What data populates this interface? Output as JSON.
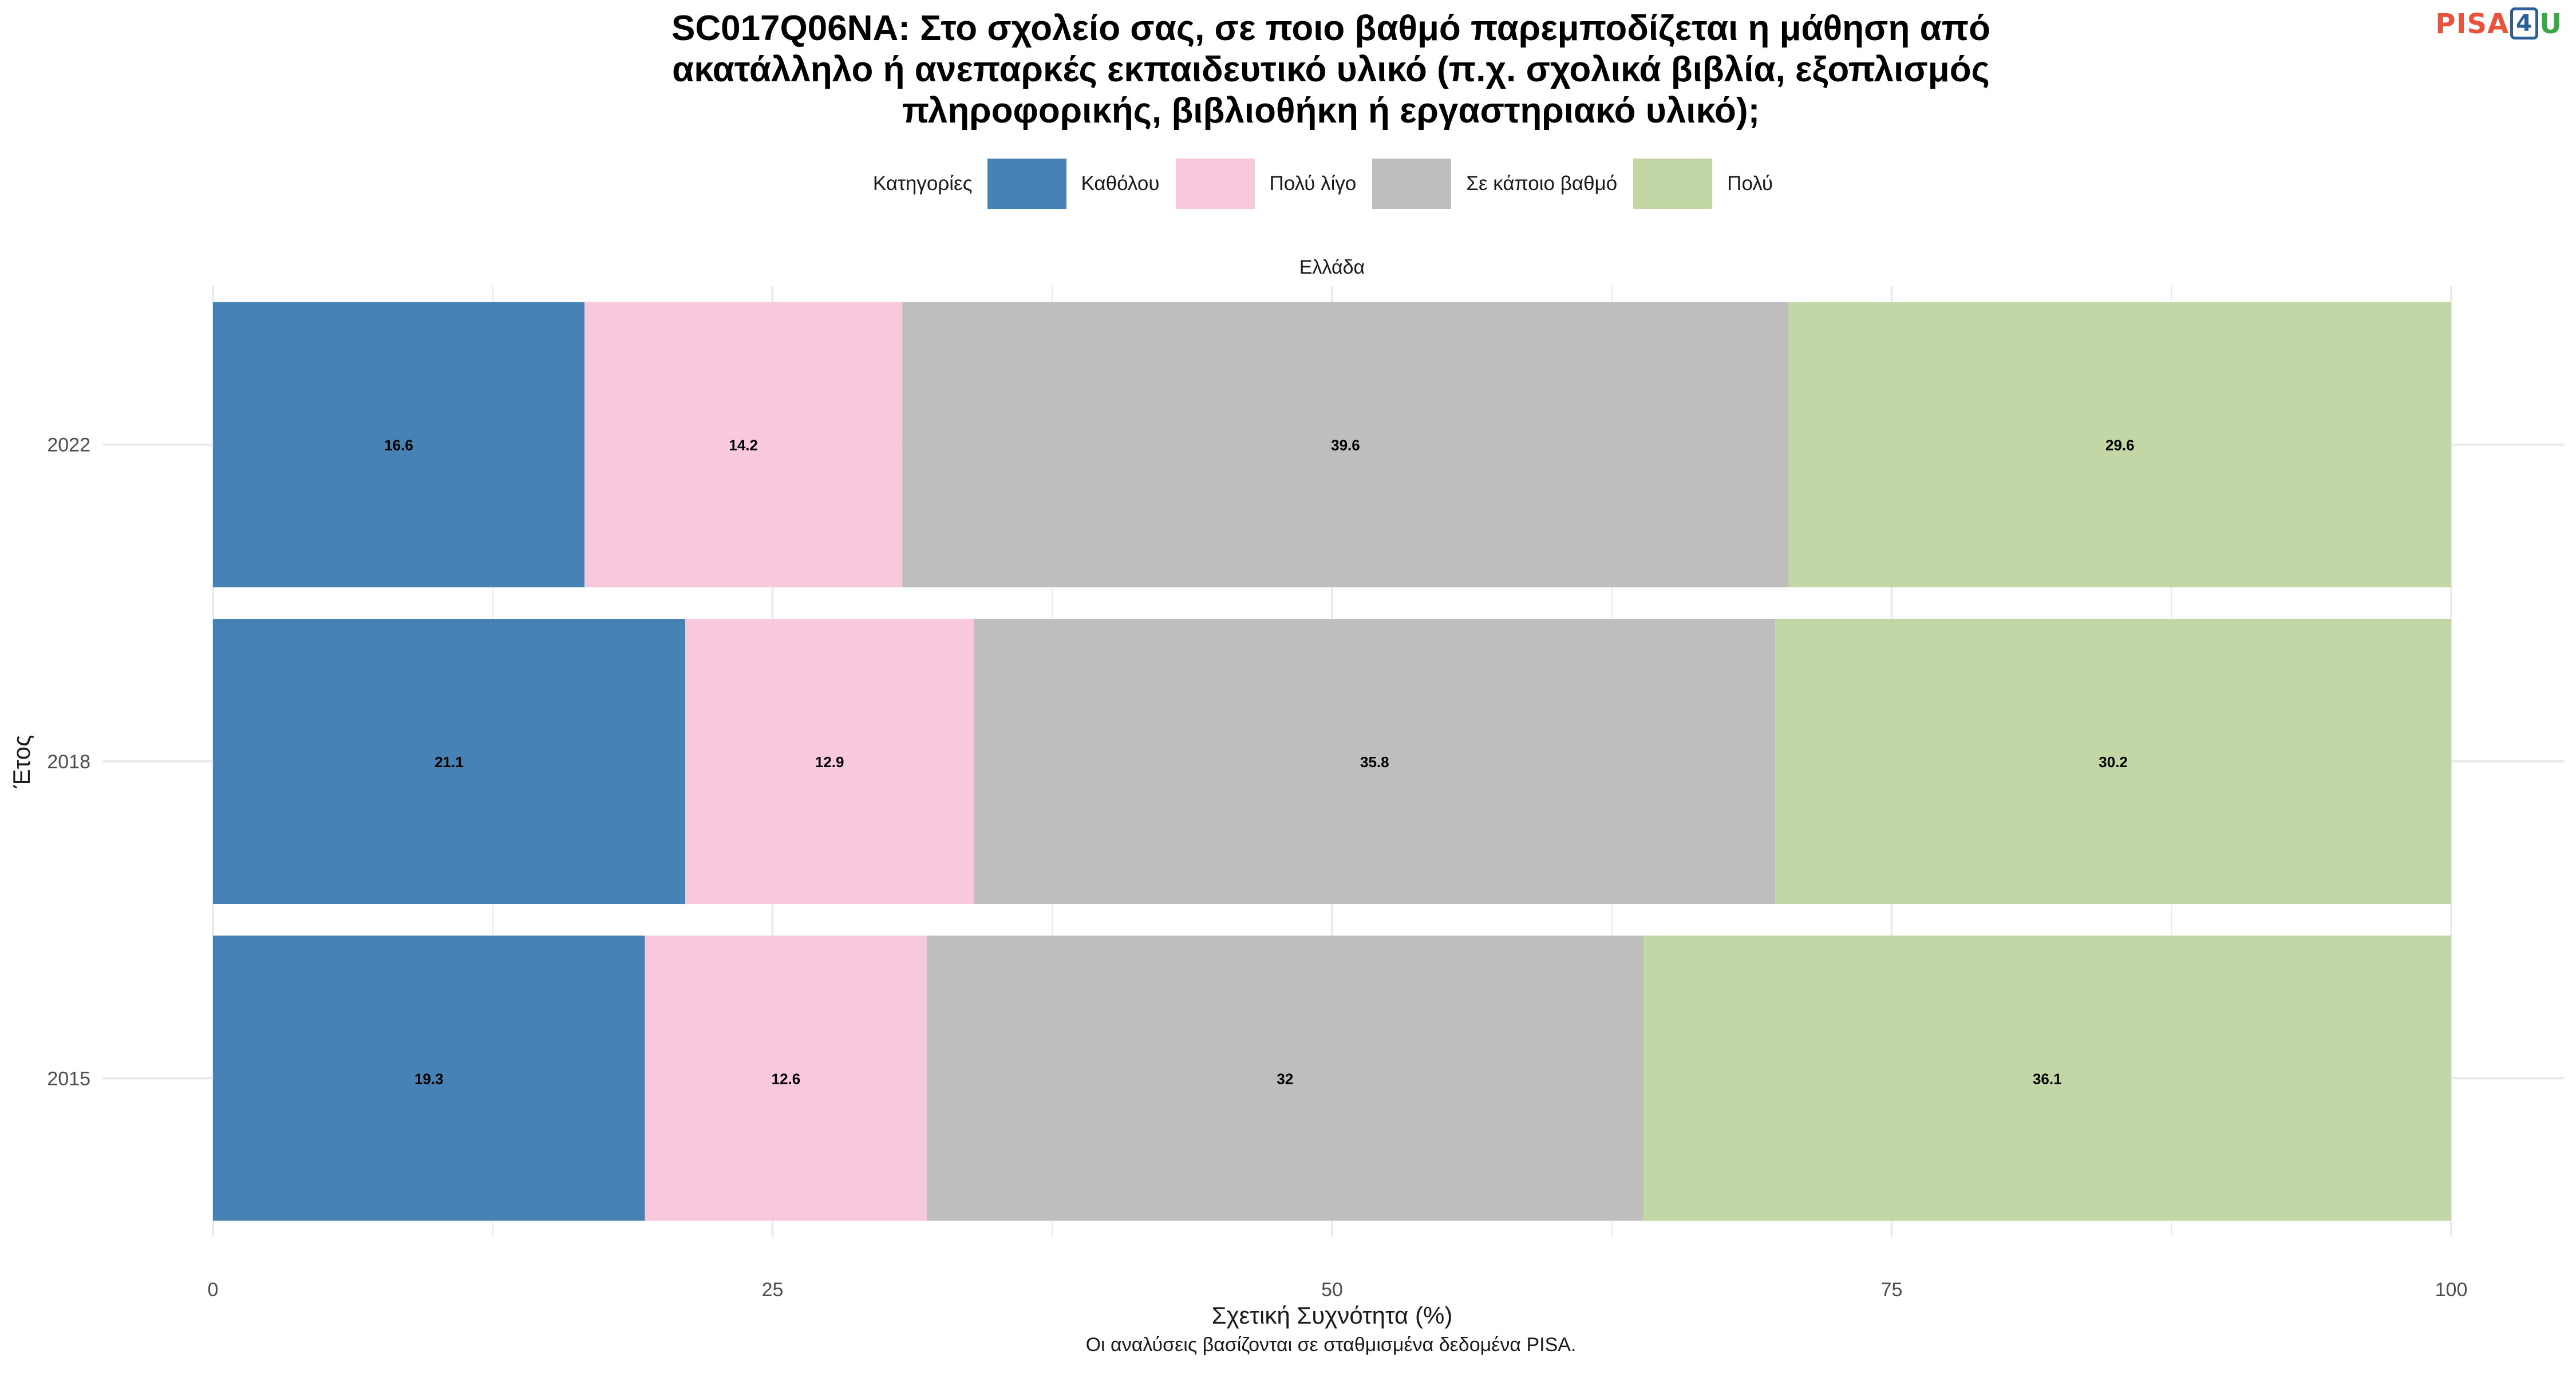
{
  "title_lines": [
    "SC017Q06NA: Στο σχολείο σας, σε ποιο βαθμό παρεμποδίζεται η μάθηση από",
    "ακατάλληλο ή ανεπαρκές εκπαιδευτικό υλικό (π.χ. σχολικά βιβλία, εξοπλισμός",
    "πληροφορικής, βιβλιοθήκη ή εργαστηριακό υλικό);"
  ],
  "logo": {
    "pisa": "PISA",
    "four": "4",
    "u": "U"
  },
  "legend": {
    "title": "Κατηγορίες",
    "items": [
      {
        "label": "Καθόλου",
        "color": "#4682b4"
      },
      {
        "label": "Πολύ λίγο",
        "color": "#f8c8dc"
      },
      {
        "label": "Σε κάποιο βαθμό",
        "color": "#bebebe"
      },
      {
        "label": "Πολύ",
        "color": "#c3d6a5"
      }
    ]
  },
  "caption": "Οι αναλύσεις βασίζονται σε σταθμισμένα δεδομένα PISA.",
  "chart_data": {
    "type": "bar",
    "orientation": "horizontal",
    "stacked": true,
    "facet": "Ελλάδα",
    "categories": [
      "2022",
      "2018",
      "2015"
    ],
    "series": [
      {
        "name": "Καθόλου",
        "color": "#4682b4",
        "values": [
          16.6,
          21.1,
          19.3
        ]
      },
      {
        "name": "Πολύ λίγο",
        "color": "#f8c8dc",
        "values": [
          14.2,
          12.9,
          12.6
        ]
      },
      {
        "name": "Σε κάποιο βαθμό",
        "color": "#bebebe",
        "values": [
          39.6,
          35.8,
          32
        ]
      },
      {
        "name": "Πολύ",
        "color": "#c3d6a5",
        "values": [
          29.6,
          30.2,
          36.1
        ]
      }
    ],
    "xlabel": "Σχετική Συχνότητα (%)",
    "ylabel": "Έτος",
    "xlim": [
      0,
      100
    ],
    "xticks": [
      0,
      25,
      50,
      75,
      100
    ],
    "grid": true,
    "legend_position": "top"
  }
}
